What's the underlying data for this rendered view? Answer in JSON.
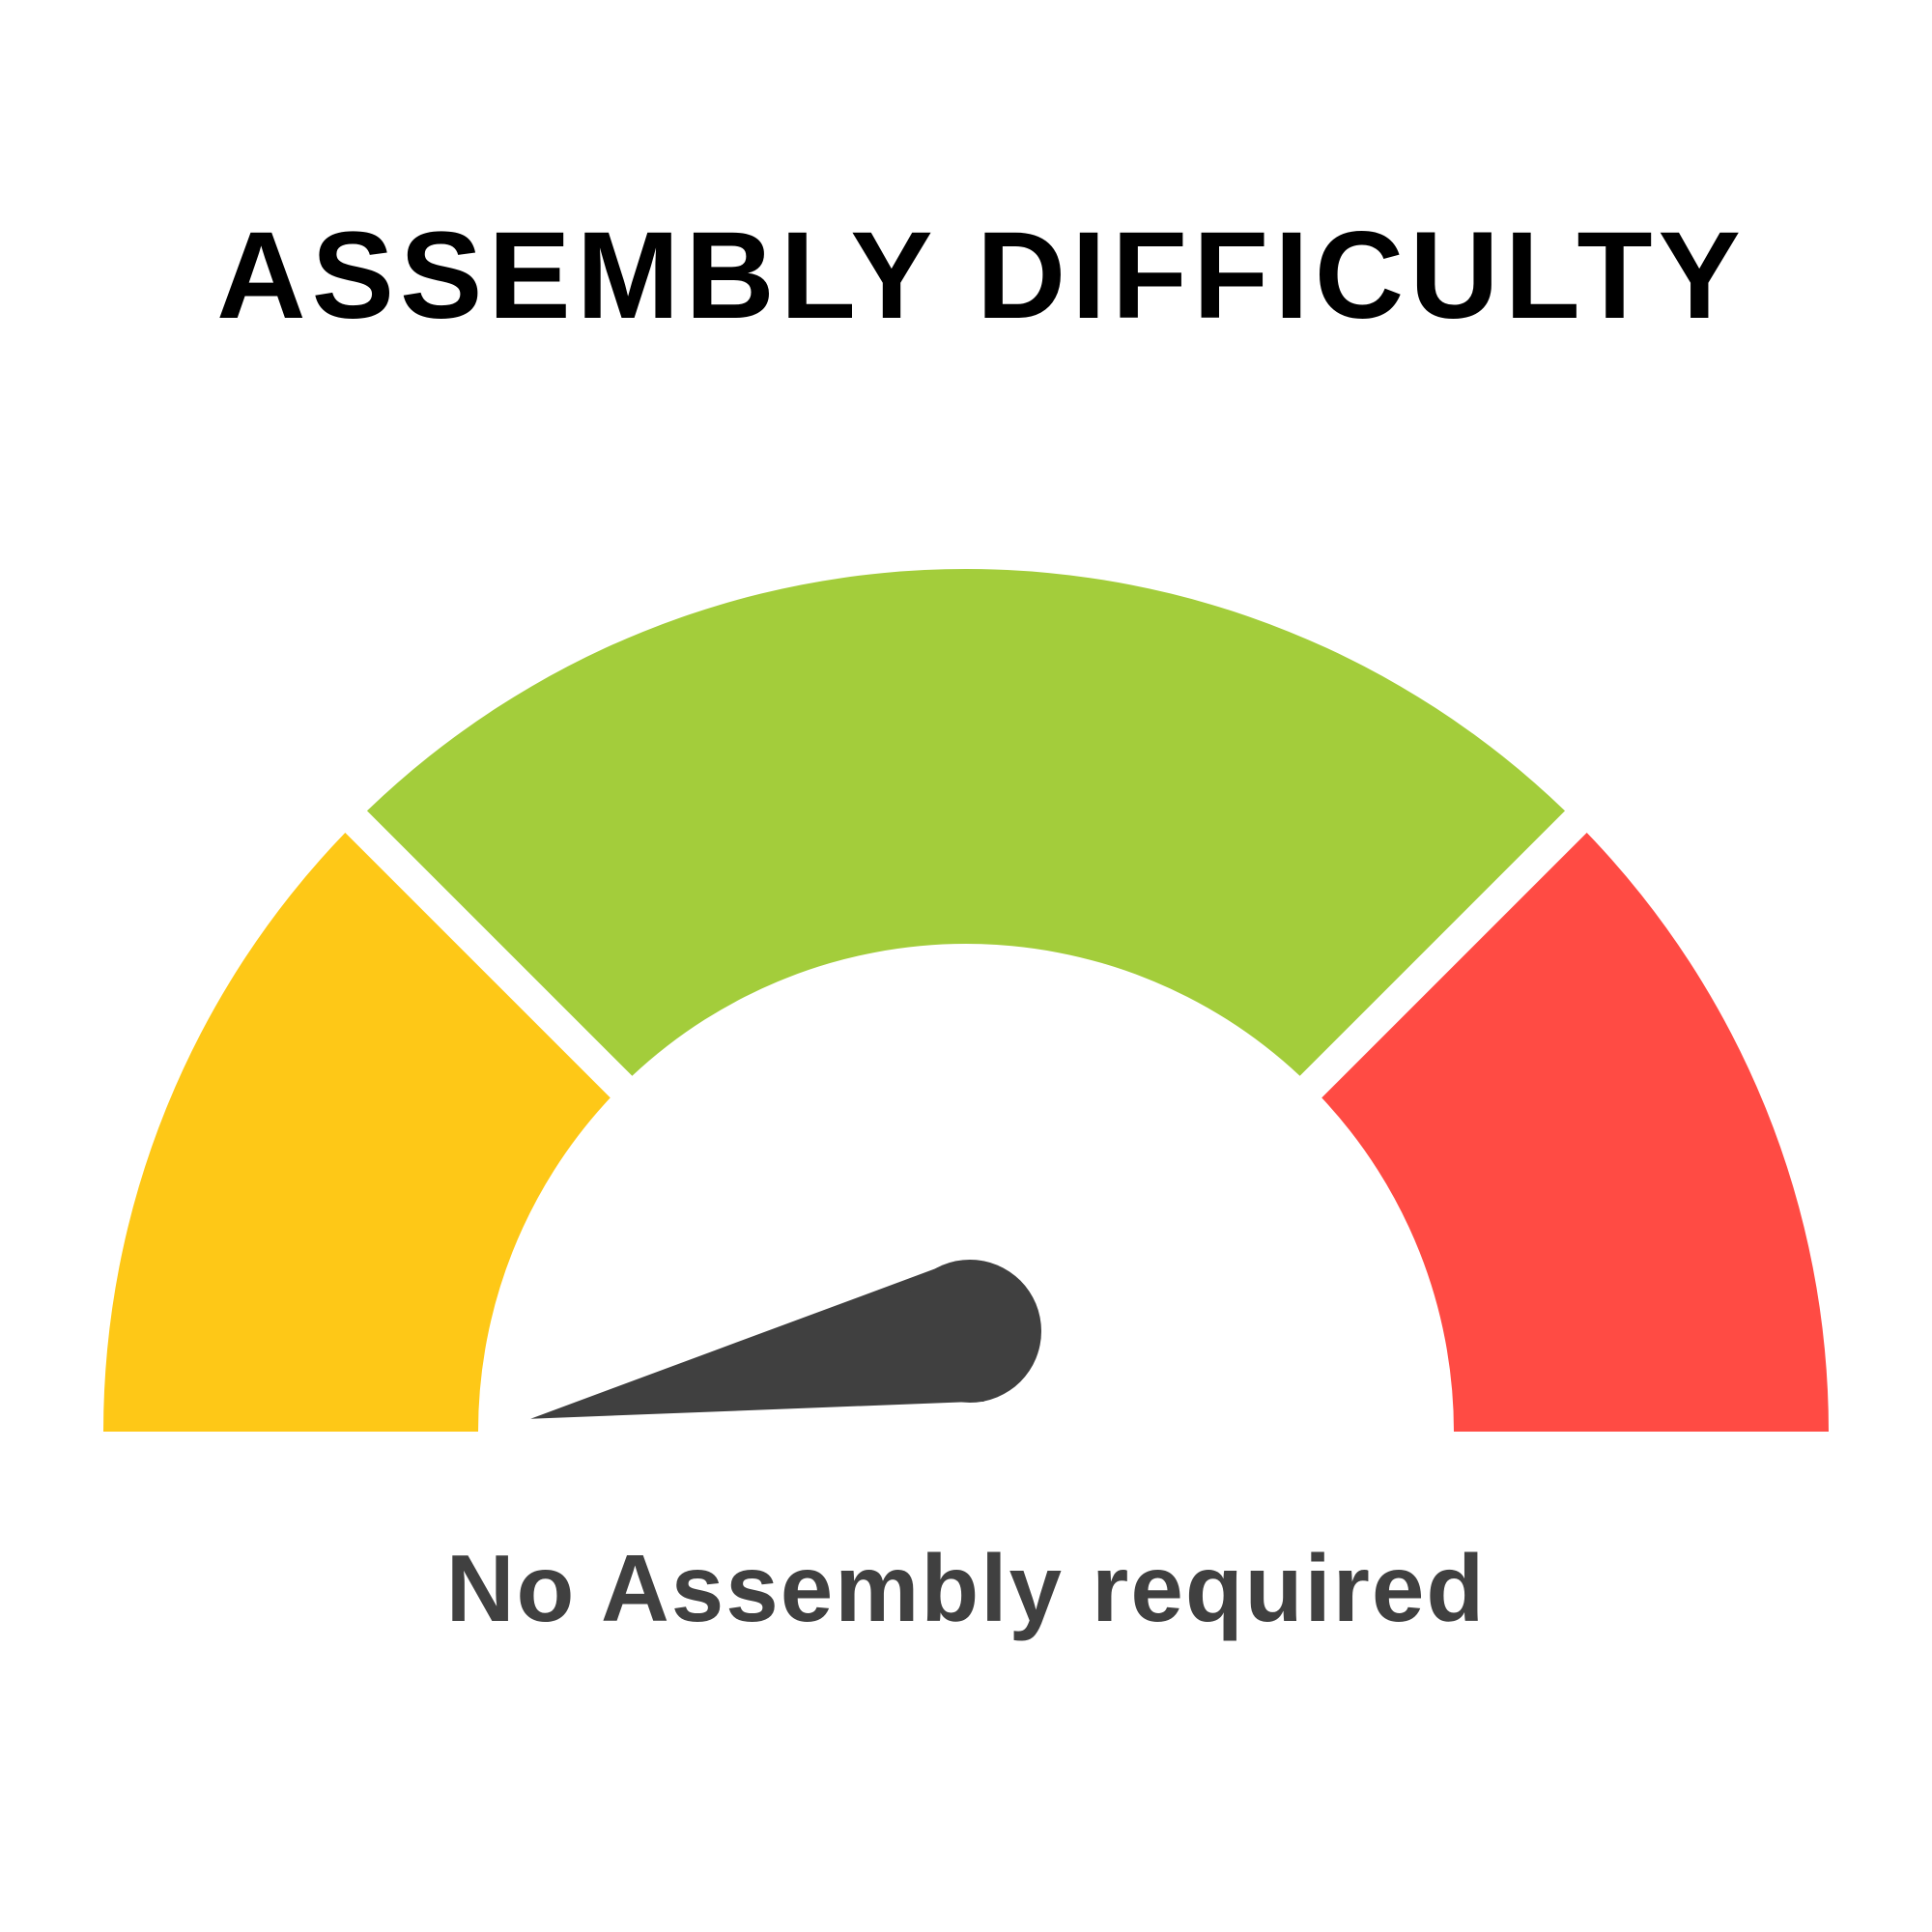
{
  "title": "ASSEMBLY DIFFICULTY",
  "subtitle": "No Assembly required",
  "gauge": {
    "segments": [
      {
        "color": "#FEC817"
      },
      {
        "color": "#A3CD3B"
      },
      {
        "color": "#FF4B44"
      }
    ],
    "needle_color": "#404040",
    "needle_value_fraction": 0.01
  }
}
